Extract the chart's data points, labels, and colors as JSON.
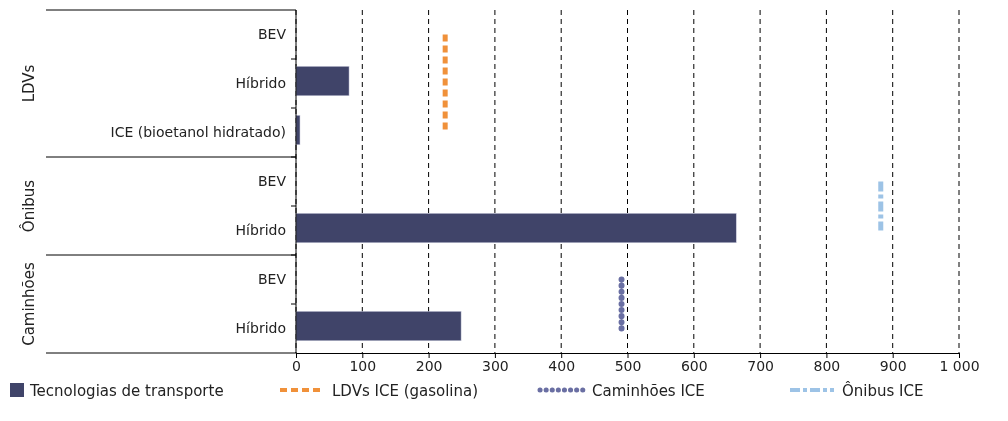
{
  "chart_data": {
    "type": "bar",
    "orientation": "horizontal",
    "categories": [
      "BEV",
      "Híbrido",
      "ICE (bioetanol hidratado)",
      "BEV",
      "Híbrido",
      "BEV",
      "Híbrido"
    ],
    "series": [
      {
        "name": "Tecnologias de transporte",
        "color": "#404469",
        "values": [
          0,
          80,
          6,
          0,
          664,
          0,
          249
        ]
      },
      {
        "name": "LDVs ICE  (gasolina)",
        "type": "line",
        "color": "#f0913a",
        "line_style": "dashed",
        "values": [
          225,
          225,
          225,
          null,
          null,
          null,
          null
        ]
      },
      {
        "name": "Caminhões ICE",
        "type": "line",
        "color": "#6a6fa3",
        "line_style": "dotted",
        "values": [
          null,
          null,
          null,
          null,
          null,
          491,
          491
        ]
      },
      {
        "name": "Ônibus ICE",
        "type": "line",
        "color": "#9dc3e6",
        "line_style": "dashdot",
        "values": [
          null,
          null,
          null,
          882,
          882,
          null,
          null
        ]
      }
    ],
    "xlim": [
      0,
      1000
    ],
    "xticks": [
      0,
      100,
      200,
      300,
      400,
      500,
      600,
      700,
      800,
      900,
      {
        "value": 1000,
        "label": "1 000"
      }
    ],
    "grid": "x",
    "legend": "bottom",
    "annotations": [
      "LDVs",
      "Ônibus",
      "Caminhões"
    ]
  }
}
